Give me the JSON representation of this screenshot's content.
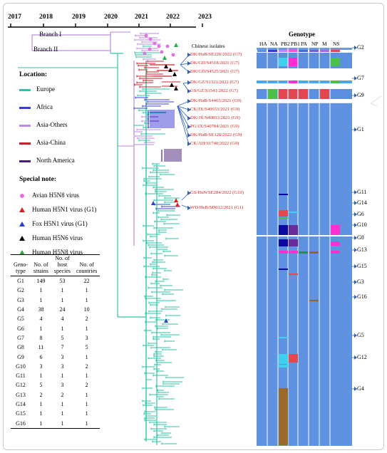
{
  "years": [
    "2017",
    "2018",
    "2019",
    "2020",
    "2021",
    "2022",
    "2023"
  ],
  "branches": {
    "b1": "Branch I",
    "b2": "Branch II"
  },
  "location": {
    "title": "Location:",
    "items": [
      {
        "label": "Europe",
        "color": "#2ec4a4"
      },
      {
        "label": "Africa",
        "color": "#3b3bd6"
      },
      {
        "label": "Asia-Others",
        "color": "#b98be3"
      },
      {
        "label": "Asia-China",
        "color": "#c8202a"
      },
      {
        "label": "North America",
        "color": "#4a1f7a"
      }
    ]
  },
  "special": {
    "title": "Special note:",
    "items": [
      {
        "label": "Avian H5N8 virus",
        "symbol": "dot",
        "color": "#e76ee0"
      },
      {
        "label": "Human H5N1 virus (G1)",
        "symbol": "triangle",
        "color": "#e02020"
      },
      {
        "label": "Fox H5N1 virus (G1)",
        "symbol": "triangle",
        "color": "#2d3fd6"
      },
      {
        "label": "Human H5N6 virus",
        "symbol": "triangle",
        "color": "#000000"
      },
      {
        "label": "Human H5N8 virus",
        "symbol": "triangle",
        "color": "#22aa44"
      }
    ]
  },
  "isolates": {
    "header": "Chinese isolates",
    "items": [
      "DK/HuB/SE220/2022 (G7)",
      "DK/GD/S4518/2021 (G7)",
      "DK/GD/S4525/2021 (G7)",
      "DK/GZ/S1321/2022 (G7)",
      "GS/GZ/S1541/2022 (G7)",
      "DK/HuB/S4465/2021 (G9)",
      "CK/JX/S40653/2021 (G9)",
      "DK/JX/S40833/2021 (G9)",
      "PG/JX/S40784/2021 (G9)",
      "DK/HuB/SE128/2022 (G9)",
      "CK/AH/S1740/2022 (G9)",
      "GS/HuN/SE284/2022 (G10)",
      "WD/HeB/SD012/2021 (G1)"
    ]
  },
  "genotype": {
    "header": "Genotype",
    "segments": [
      "HA",
      "NA",
      "PB2",
      "PB1",
      "PA",
      "NP",
      "M",
      "NS"
    ],
    "labels": [
      "G2",
      "G7",
      "G9",
      "G1",
      "G11",
      "G14",
      "G6",
      "G10",
      "G8",
      "G13",
      "G15",
      "G3",
      "G16",
      "G5",
      "G12",
      "G4"
    ]
  },
  "table": {
    "headers": [
      "Geno-\ntype",
      "No. of\nstrains",
      "No. of\nhost\nspecies",
      "No. of\ncountries"
    ],
    "rows": [
      [
        "G1",
        "149",
        "53",
        "22"
      ],
      [
        "G2",
        "1",
        "1",
        "1"
      ],
      [
        "G3",
        "1",
        "1",
        "1"
      ],
      [
        "G4",
        "38",
        "24",
        "10"
      ],
      [
        "G5",
        "4",
        "4",
        "2"
      ],
      [
        "G6",
        "1",
        "1",
        "1"
      ],
      [
        "G7",
        "8",
        "5",
        "3"
      ],
      [
        "G8",
        "11",
        "7",
        "5"
      ],
      [
        "G9",
        "6",
        "3",
        "1"
      ],
      [
        "G10",
        "3",
        "3",
        "2"
      ],
      [
        "G11",
        "1",
        "1",
        "1"
      ],
      [
        "G12",
        "5",
        "3",
        "2"
      ],
      [
        "G13",
        "2",
        "2",
        "1"
      ],
      [
        "G14",
        "1",
        "1",
        "1"
      ],
      [
        "G15",
        "1",
        "1",
        "1"
      ],
      [
        "G16",
        "1",
        "1",
        "1"
      ]
    ]
  }
}
